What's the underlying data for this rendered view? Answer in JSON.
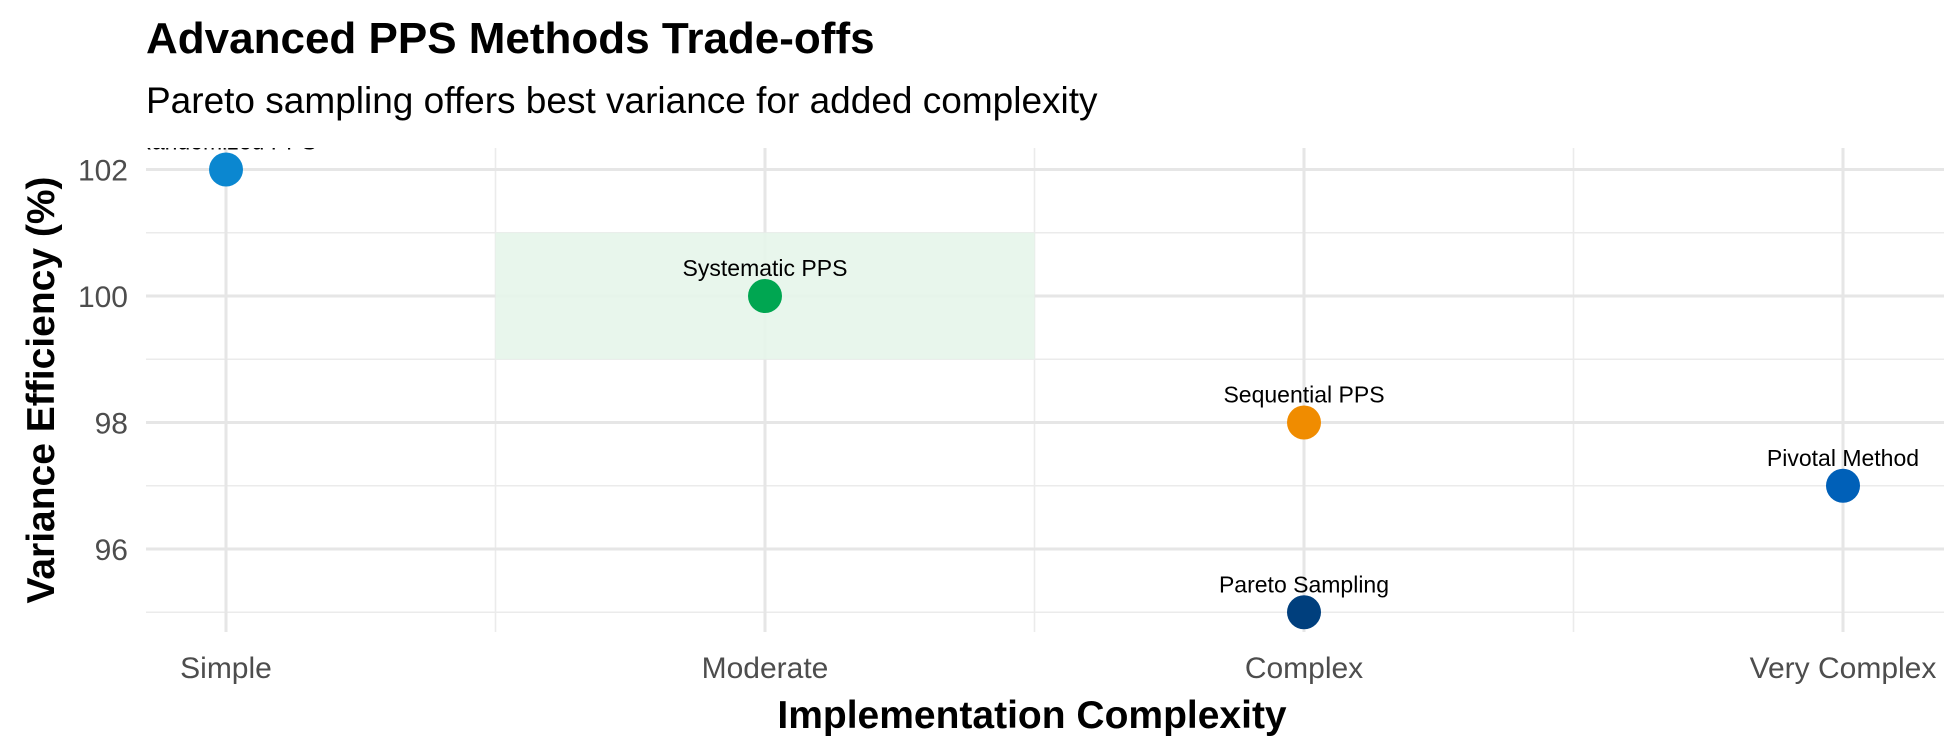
{
  "title": "Advanced PPS Methods Trade-offs",
  "subtitle": "Pareto sampling offers best variance for added complexity",
  "chart_data": {
    "type": "scatter",
    "xlabel": "Implementation Complexity",
    "ylabel": "Variance Efficiency (%)",
    "categories": [
      "Simple",
      "Moderate",
      "Complex",
      "Very Complex"
    ],
    "y_ticks": [
      96,
      98,
      100,
      102
    ],
    "ylim": [
      94.7,
      102.4
    ],
    "grid": true,
    "highlight_region": {
      "x_from": "Simple/Moderate midpoint",
      "x_to": "Moderate/Complex midpoint",
      "y_from": 99,
      "y_to": 101,
      "color": "#e5f5ea"
    },
    "points": [
      {
        "label": "Randomized PPS",
        "x": "Simple",
        "y": 102,
        "color": "#0b87d0"
      },
      {
        "label": "Systematic PPS",
        "x": "Moderate",
        "y": 100,
        "color": "#00a651"
      },
      {
        "label": "Sequential PPS",
        "x": "Complex",
        "y": 98,
        "color": "#f08c00"
      },
      {
        "label": "Pareto Sampling",
        "x": "Complex",
        "y": 95,
        "color": "#003f7d"
      },
      {
        "label": "Pivotal Method",
        "x": "Very Complex",
        "y": 97,
        "color": "#0060b8"
      }
    ]
  }
}
